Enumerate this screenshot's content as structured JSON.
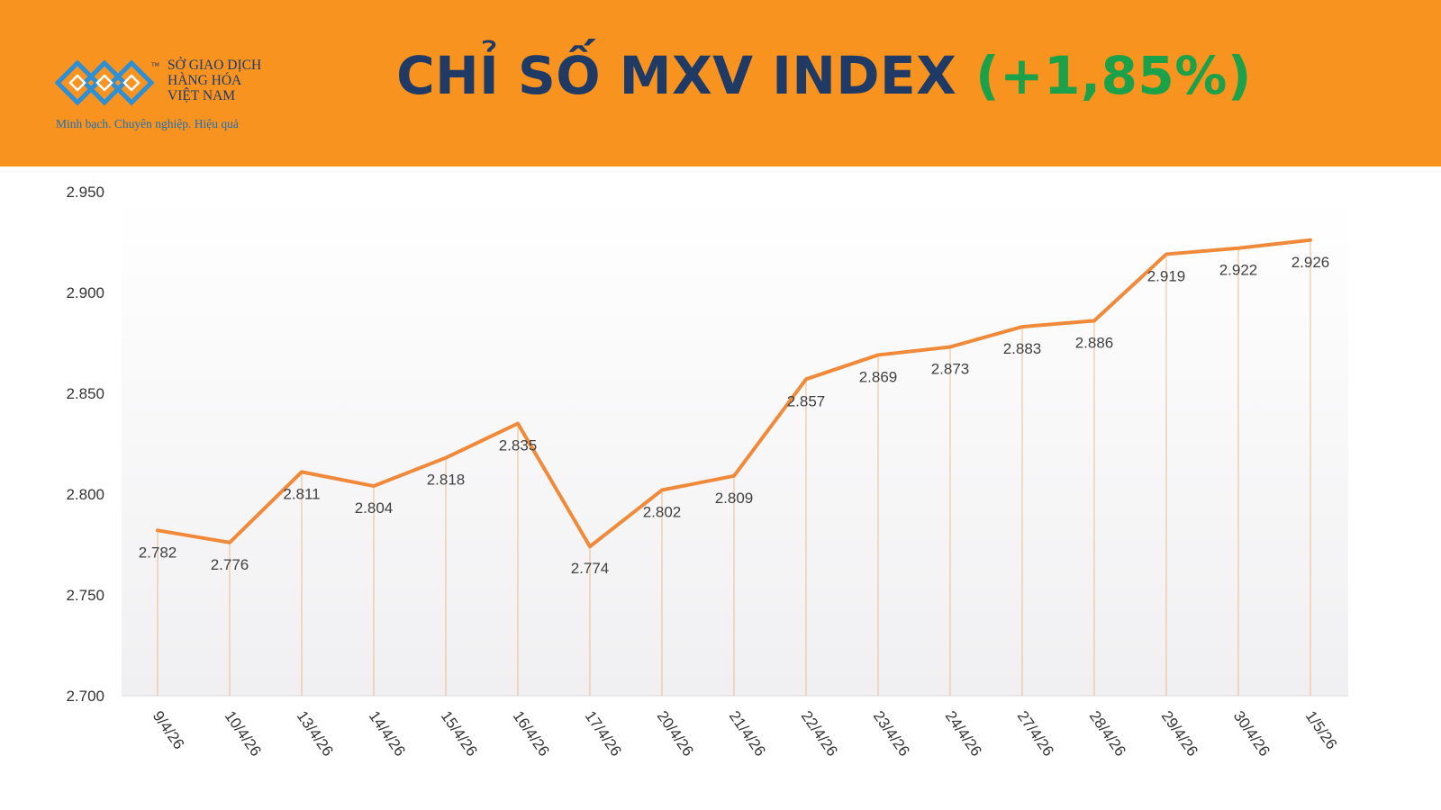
{
  "header": {
    "title": "CHỈ SỐ MXV INDEX",
    "change": "(+1,85%)",
    "logo": {
      "line1": "SỞ GIAO DỊCH",
      "line2": "HÀNG HÓA",
      "line3": "VIỆT NAM",
      "tagline": "Minh bạch. Chuyên nghiệp. Hiệu quả",
      "icon": "mxv-logo-mark"
    }
  },
  "colors": {
    "header_bg": "#f7931e",
    "title": "#203a66",
    "change": "#1aa14a",
    "line": "#f08a3a",
    "drop_line": "#f5b98a"
  },
  "chart_data": {
    "type": "line",
    "categories": [
      "9/4/26",
      "10/4/26",
      "13/4/26",
      "14/4/26",
      "15/4/26",
      "16/4/26",
      "17/4/26",
      "20/4/26",
      "21/4/26",
      "22/4/26",
      "23/4/26",
      "24/4/26",
      "27/4/26",
      "28/4/26",
      "29/4/26",
      "30/4/26",
      "1/5/26"
    ],
    "values": [
      2782,
      2776,
      2811,
      2804,
      2818,
      2835,
      2774,
      2802,
      2809,
      2857,
      2869,
      2873,
      2883,
      2886,
      2919,
      2922,
      2926
    ],
    "value_labels": [
      "2.782",
      "2.776",
      "2.811",
      "2.804",
      "2.818",
      "2.835",
      "2.774",
      "2.802",
      "2.809",
      "2.857",
      "2.869",
      "2.873",
      "2.883",
      "2.886",
      "2.919",
      "2.922",
      "2.926"
    ],
    "ylim": [
      2700,
      2950
    ],
    "yticks": [
      2700,
      2750,
      2800,
      2850,
      2900,
      2950
    ],
    "ytick_labels": [
      "2.700",
      "2.750",
      "2.800",
      "2.850",
      "2.900",
      "2.950"
    ],
    "grid": false,
    "legend": "none"
  }
}
